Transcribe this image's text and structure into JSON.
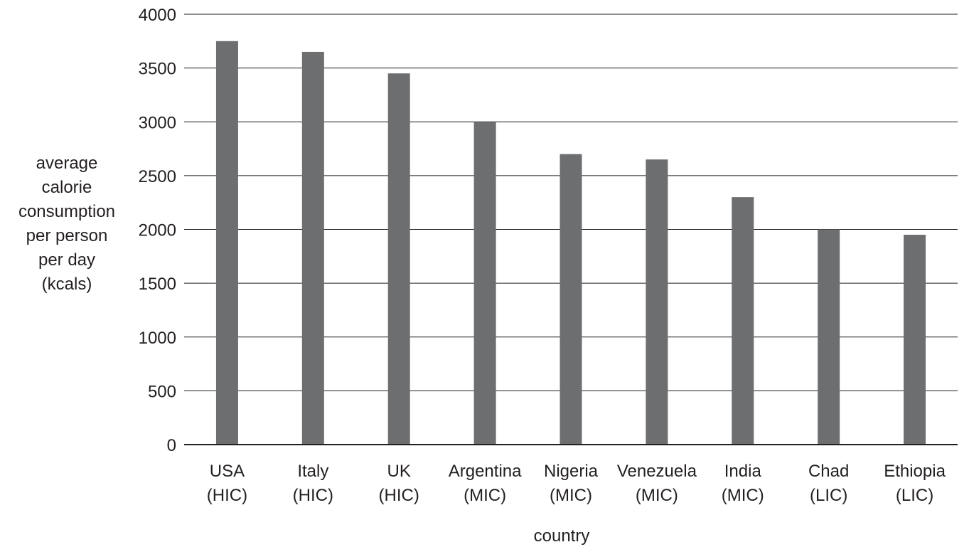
{
  "chart_data": {
    "type": "bar",
    "categories": [
      "USA\n(HIC)",
      "Italy\n(HIC)",
      "UK\n(HIC)",
      "Argentina\n(MIC)",
      "Nigeria\n(MIC)",
      "Venezuela\n(MIC)",
      "India\n(MIC)",
      "Chad\n(LIC)",
      "Ethiopia\n(LIC)"
    ],
    "values": [
      3750,
      3650,
      3450,
      3000,
      2700,
      2650,
      2300,
      2000,
      1950
    ],
    "xlabel": "country",
    "ylabel": "average\ncalorie\nconsumption\nper person\nper day\n(kcals)",
    "ylim": [
      0,
      4000
    ],
    "yticks": [
      0,
      500,
      1000,
      1500,
      2000,
      2500,
      3000,
      3500,
      4000
    ],
    "grid": true,
    "bar_color": "#6d6e70",
    "grid_color": "#231f20",
    "text_color": "#231f20"
  }
}
